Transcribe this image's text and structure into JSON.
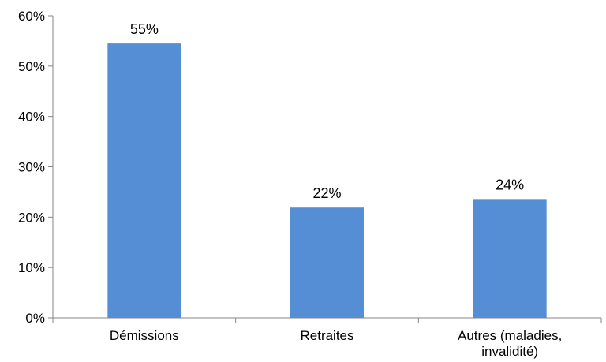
{
  "chart_data": {
    "type": "bar",
    "categories": [
      [
        "Démissions"
      ],
      [
        "Retraites"
      ],
      [
        "Autres (maladies,",
        "invalidité)"
      ]
    ],
    "values": [
      54.5,
      21.9,
      23.6
    ],
    "data_labels": [
      "55%",
      "22%",
      "24%"
    ],
    "ylim": [
      0,
      60
    ],
    "y_ticks": [
      0,
      10,
      20,
      30,
      40,
      50,
      60
    ],
    "y_tick_labels": [
      "0%",
      "10%",
      "20%",
      "30%",
      "40%",
      "50%",
      "60%"
    ],
    "title": "",
    "xlabel": "",
    "ylabel": "",
    "grid": false,
    "legend": "none",
    "bar_color": "#558ED5"
  }
}
